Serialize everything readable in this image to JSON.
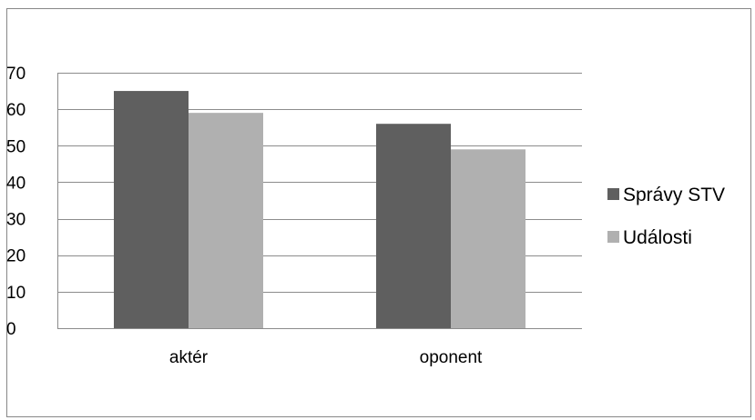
{
  "chart_data": {
    "type": "bar",
    "categories": [
      "aktér",
      "oponent"
    ],
    "series": [
      {
        "name": "Správy STV",
        "values": [
          65,
          56
        ],
        "color": "#5f5f5f"
      },
      {
        "name": "Události",
        "values": [
          59,
          49
        ],
        "color": "#b0b0b0"
      }
    ],
    "ylim": [
      0,
      70
    ],
    "yticks": [
      0,
      10,
      20,
      30,
      40,
      50,
      60,
      70
    ],
    "grid": true,
    "gridline_color": "#8c8c8c",
    "legend_position": "right"
  }
}
